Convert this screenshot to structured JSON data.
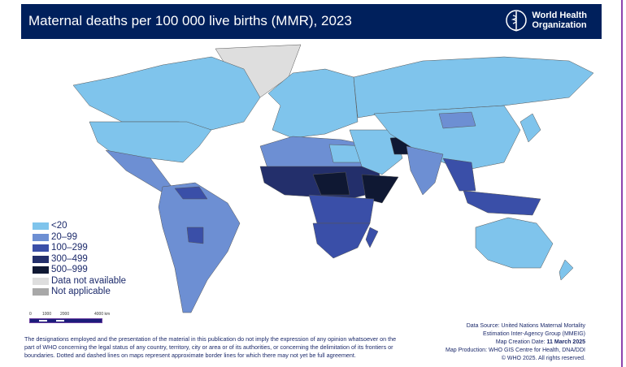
{
  "header": {
    "title": "Maternal deaths per 100 000 live births (MMR), 2023",
    "org_name_line1": "World Health",
    "org_name_line2": "Organization"
  },
  "legend": {
    "items": [
      {
        "label": "<20",
        "color": "#7fc4ec"
      },
      {
        "label": "20–99",
        "color": "#6d8fd3"
      },
      {
        "label": "100–299",
        "color": "#3a4fa8"
      },
      {
        "label": "300–499",
        "color": "#232f6b"
      },
      {
        "label": "500–999",
        "color": "#0f1833"
      },
      {
        "label": "Data not available",
        "color": "#dedede"
      },
      {
        "label": "Not applicable",
        "color": "#a8a8a8"
      }
    ]
  },
  "scale_bar": {
    "ticks": [
      "0",
      "1000",
      "2000",
      "4000 km"
    ]
  },
  "footer": {
    "disclaimer": "The designations employed and the presentation of the material in this publication do not imply the expression of any opinion whatsoever on the part of WHO concerning the legal status of any country, territory, city or area or of its authorities, or concerning the delimitation of its frontiers or boundaries. Dotted and dashed lines on maps represent approximate border lines for which there may not yet be full agreement.",
    "source_line1": "Data Source: United Nations Maternal Mortality",
    "source_line2": "Estimation Inter-Agency Group (MMEIG)",
    "creation_label": "Map Creation Date: ",
    "creation_date": "11 March 2025",
    "production": "Map Production: WHO GIS Centre for Health, DNA/DDI",
    "copyright": "© WHO 2025. All rights reserved."
  }
}
